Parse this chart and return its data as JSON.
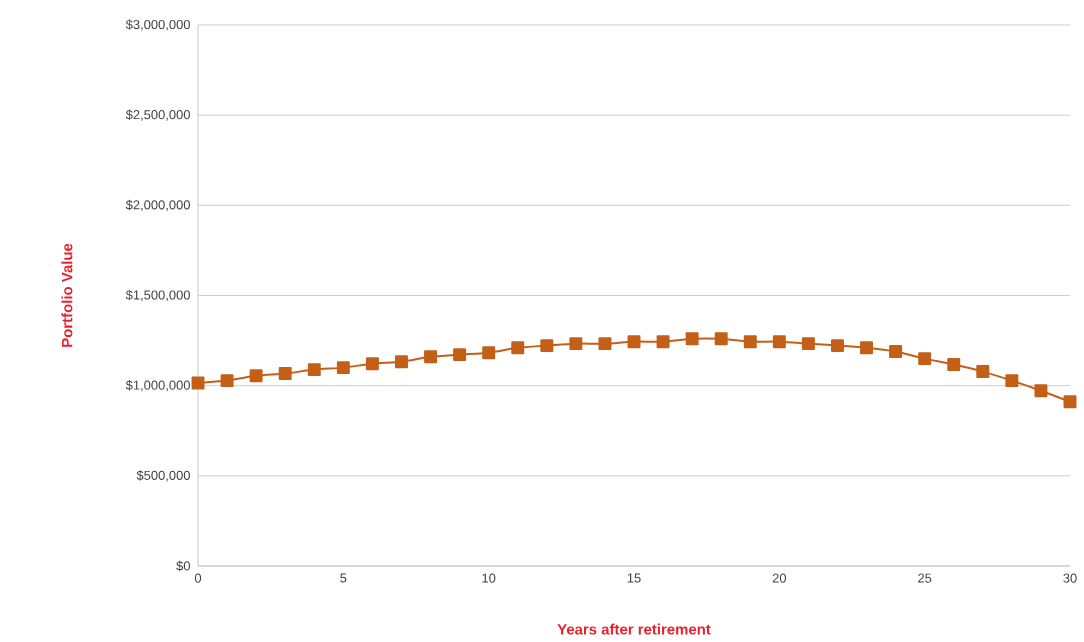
{
  "chart_data": {
    "type": "line",
    "xlabel": "Years after retirement",
    "ylabel": "Portfolio Value",
    "x": [
      0,
      1,
      2,
      3,
      4,
      5,
      6,
      7,
      8,
      9,
      10,
      11,
      12,
      13,
      14,
      15,
      16,
      17,
      18,
      19,
      20,
      21,
      22,
      23,
      24,
      25,
      26,
      27,
      28,
      29,
      30
    ],
    "series": [
      {
        "color": "#c45f17",
        "values": [
          1015000,
          1028000,
          1055000,
          1067000,
          1089000,
          1100000,
          1122000,
          1133000,
          1160000,
          1172000,
          1183000,
          1210000,
          1222000,
          1233000,
          1233000,
          1244000,
          1244000,
          1260000,
          1260000,
          1244000,
          1244000,
          1233000,
          1222000,
          1210000,
          1189000,
          1150000,
          1117000,
          1078000,
          1028000,
          972000,
          911000
        ]
      }
    ],
    "xlim": [
      0,
      30
    ],
    "xticks": [
      0,
      5,
      10,
      15,
      20,
      25,
      30
    ],
    "ylim": [
      0,
      3000000
    ],
    "yticks": [
      {
        "value": 0,
        "label": "$0"
      },
      {
        "value": 500000,
        "label": "$500,000"
      },
      {
        "value": 1000000,
        "label": "$1,000,000"
      },
      {
        "value": 1500000,
        "label": "$1,500,000"
      },
      {
        "value": 2000000,
        "label": "$2,000,000"
      },
      {
        "value": 2500000,
        "label": "$2,500,000"
      },
      {
        "value": 3000000,
        "label": "$3,000,000"
      }
    ],
    "grid": "y",
    "marker": "square",
    "line_style": "solid"
  }
}
